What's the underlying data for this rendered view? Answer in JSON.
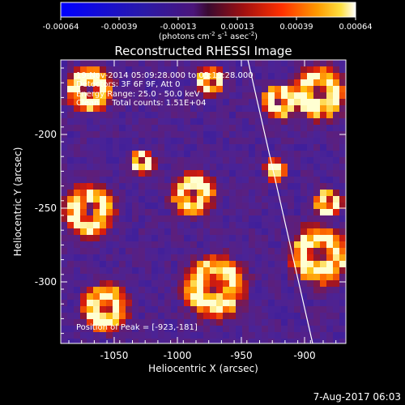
{
  "colorbar": {
    "ticks": [
      "-0.00064",
      "-0.00039",
      "-0.00013",
      "0.00013",
      "0.00039",
      "0.00064"
    ],
    "unit_text_main": "(photons cm",
    "unit_sup1": "-2",
    "unit_mid": " s",
    "unit_sup2": "-1",
    "unit_tail": " asec",
    "unit_sup3": "-2",
    "unit_close": ")"
  },
  "title": "Reconstructed RHESSI Image",
  "annotations": {
    "time_range": "19-Nov-2014 05:09:28.000 to 05:19:28.000",
    "detectors": "Detectors: 3F 6F 9F, Att 0",
    "energy": "Energy Range: 25.0 - 50.0 keV",
    "method": "Clean     Total counts: 1.51E+04",
    "peak": "Position of Peak = [-923,-181]"
  },
  "axes": {
    "xlabel": "Heliocentric X (arcsec)",
    "ylabel": "Heliocentric Y (arcsec)",
    "xticks": [
      "-1050",
      "-1000",
      "-950",
      "-900"
    ],
    "yticks": [
      "-200",
      "-250",
      "-300"
    ]
  },
  "footer": {
    "date": "7-Aug-2017 06:03"
  }
}
